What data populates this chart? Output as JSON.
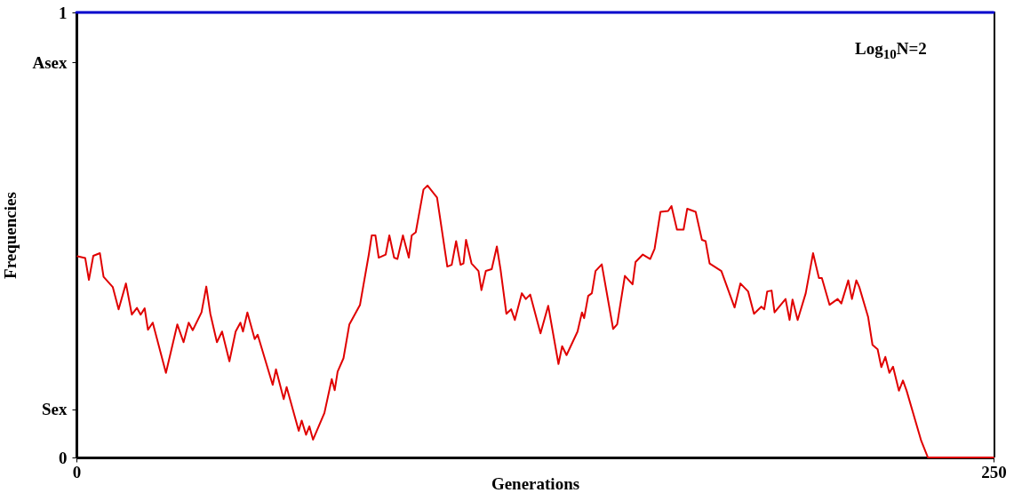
{
  "chart_data": {
    "type": "line",
    "xlabel": "Generations",
    "ylabel": "Frequencies",
    "annotations": [
      "Log$_{10}$N=2"
    ],
    "xlim": [
      0,
      250
    ],
    "xticks": [
      0,
      250
    ],
    "ylim": [
      0,
      1
    ],
    "yticks": [
      0,
      {
        "value": 0.108,
        "label": "Sex"
      },
      {
        "value": 0.888,
        "label": "Asex"
      },
      1
    ],
    "grid": false,
    "marker": "none",
    "line_style": "solid",
    "series": [
      {
        "color": "#0000cc",
        "x": [
          0,
          250
        ],
        "values": [
          1,
          1
        ]
      },
      {
        "color": "#e00000",
        "x": [
          0.3,
          2.4,
          3.4,
          4.6,
          6.4,
          7.4,
          9.9,
          11.5,
          13.5,
          15.1,
          16.5,
          17.5,
          18.6,
          19.5,
          20.8,
          24.4,
          27.5,
          29.2,
          30.6,
          31.7,
          34.1,
          35.4,
          36.5,
          38.3,
          39.7,
          41.7,
          43.4,
          44.7,
          45.4,
          46.6,
          48.6,
          49.4,
          53.5,
          54.4,
          56.5,
          57.3,
          60.6,
          61.4,
          62.6,
          63.5,
          64.5,
          67.6,
          69.6,
          70.4,
          71.2,
          72.8,
          74.4,
          77.3,
          79.7,
          80.5,
          81.5,
          82.4,
          84.3,
          85.3,
          86.6,
          87.5,
          89.0,
          90.6,
          91.4,
          92.5,
          94.6,
          95.7,
          98.3,
          101.1,
          102.3,
          103.5,
          104.7,
          105.5,
          106.2,
          107.7,
          109.6,
          110.4,
          111.6,
          113.2,
          114.6,
          115.6,
          117.2,
          118.5,
          119.5,
          121.4,
          122.5,
          123.7,
          126.5,
          128.6,
          131.4,
          132.4,
          133.6,
          136.6,
          137.8,
          138.4,
          139.5,
          140.5,
          141.5,
          143.2,
          146.3,
          147.4,
          149.5,
          151.6,
          152.4,
          154.4,
          156.4,
          157.6,
          159.2,
          161.3,
          162.2,
          163.7,
          165.5,
          166.5,
          168.8,
          170.5,
          171.5,
          172.6,
          175.8,
          179.4,
          181.0,
          183.1,
          184.7,
          186.7,
          187.5,
          188.3,
          189.5,
          190.3,
          193.3,
          194.4,
          195.2,
          196.6,
          198.8,
          200.8,
          202.4,
          203.2,
          205.3,
          207.5,
          208.5,
          210.4,
          211.4,
          212.6,
          213.4,
          215.8,
          217.0,
          218.4,
          219.4,
          220.5,
          221.6,
          222.6,
          224.2,
          225.3,
          226.3,
          230.3,
          232.1,
          250
        ],
        "values": [
          0.452,
          0.448,
          0.399,
          0.453,
          0.459,
          0.406,
          0.383,
          0.333,
          0.391,
          0.321,
          0.336,
          0.321,
          0.335,
          0.287,
          0.303,
          0.19,
          0.299,
          0.259,
          0.303,
          0.286,
          0.326,
          0.384,
          0.323,
          0.259,
          0.283,
          0.216,
          0.283,
          0.303,
          0.283,
          0.326,
          0.266,
          0.276,
          0.163,
          0.198,
          0.131,
          0.158,
          0.06,
          0.083,
          0.051,
          0.07,
          0.04,
          0.1,
          0.176,
          0.151,
          0.193,
          0.223,
          0.299,
          0.343,
          0.456,
          0.499,
          0.499,
          0.449,
          0.456,
          0.499,
          0.449,
          0.446,
          0.499,
          0.449,
          0.499,
          0.506,
          0.602,
          0.611,
          0.584,
          0.429,
          0.433,
          0.486,
          0.433,
          0.436,
          0.489,
          0.436,
          0.419,
          0.376,
          0.419,
          0.423,
          0.474,
          0.423,
          0.323,
          0.333,
          0.309,
          0.369,
          0.356,
          0.366,
          0.279,
          0.341,
          0.21,
          0.25,
          0.23,
          0.283,
          0.326,
          0.313,
          0.363,
          0.369,
          0.419,
          0.434,
          0.289,
          0.299,
          0.408,
          0.389,
          0.439,
          0.456,
          0.446,
          0.469,
          0.552,
          0.554,
          0.565,
          0.512,
          0.512,
          0.559,
          0.552,
          0.489,
          0.486,
          0.436,
          0.419,
          0.337,
          0.391,
          0.373,
          0.323,
          0.339,
          0.333,
          0.373,
          0.375,
          0.326,
          0.356,
          0.309,
          0.355,
          0.309,
          0.369,
          0.459,
          0.403,
          0.403,
          0.343,
          0.356,
          0.346,
          0.398,
          0.356,
          0.398,
          0.383,
          0.316,
          0.253,
          0.243,
          0.203,
          0.226,
          0.19,
          0.204,
          0.15,
          0.173,
          0.15,
          0.037,
          0,
          0
        ]
      }
    ]
  }
}
